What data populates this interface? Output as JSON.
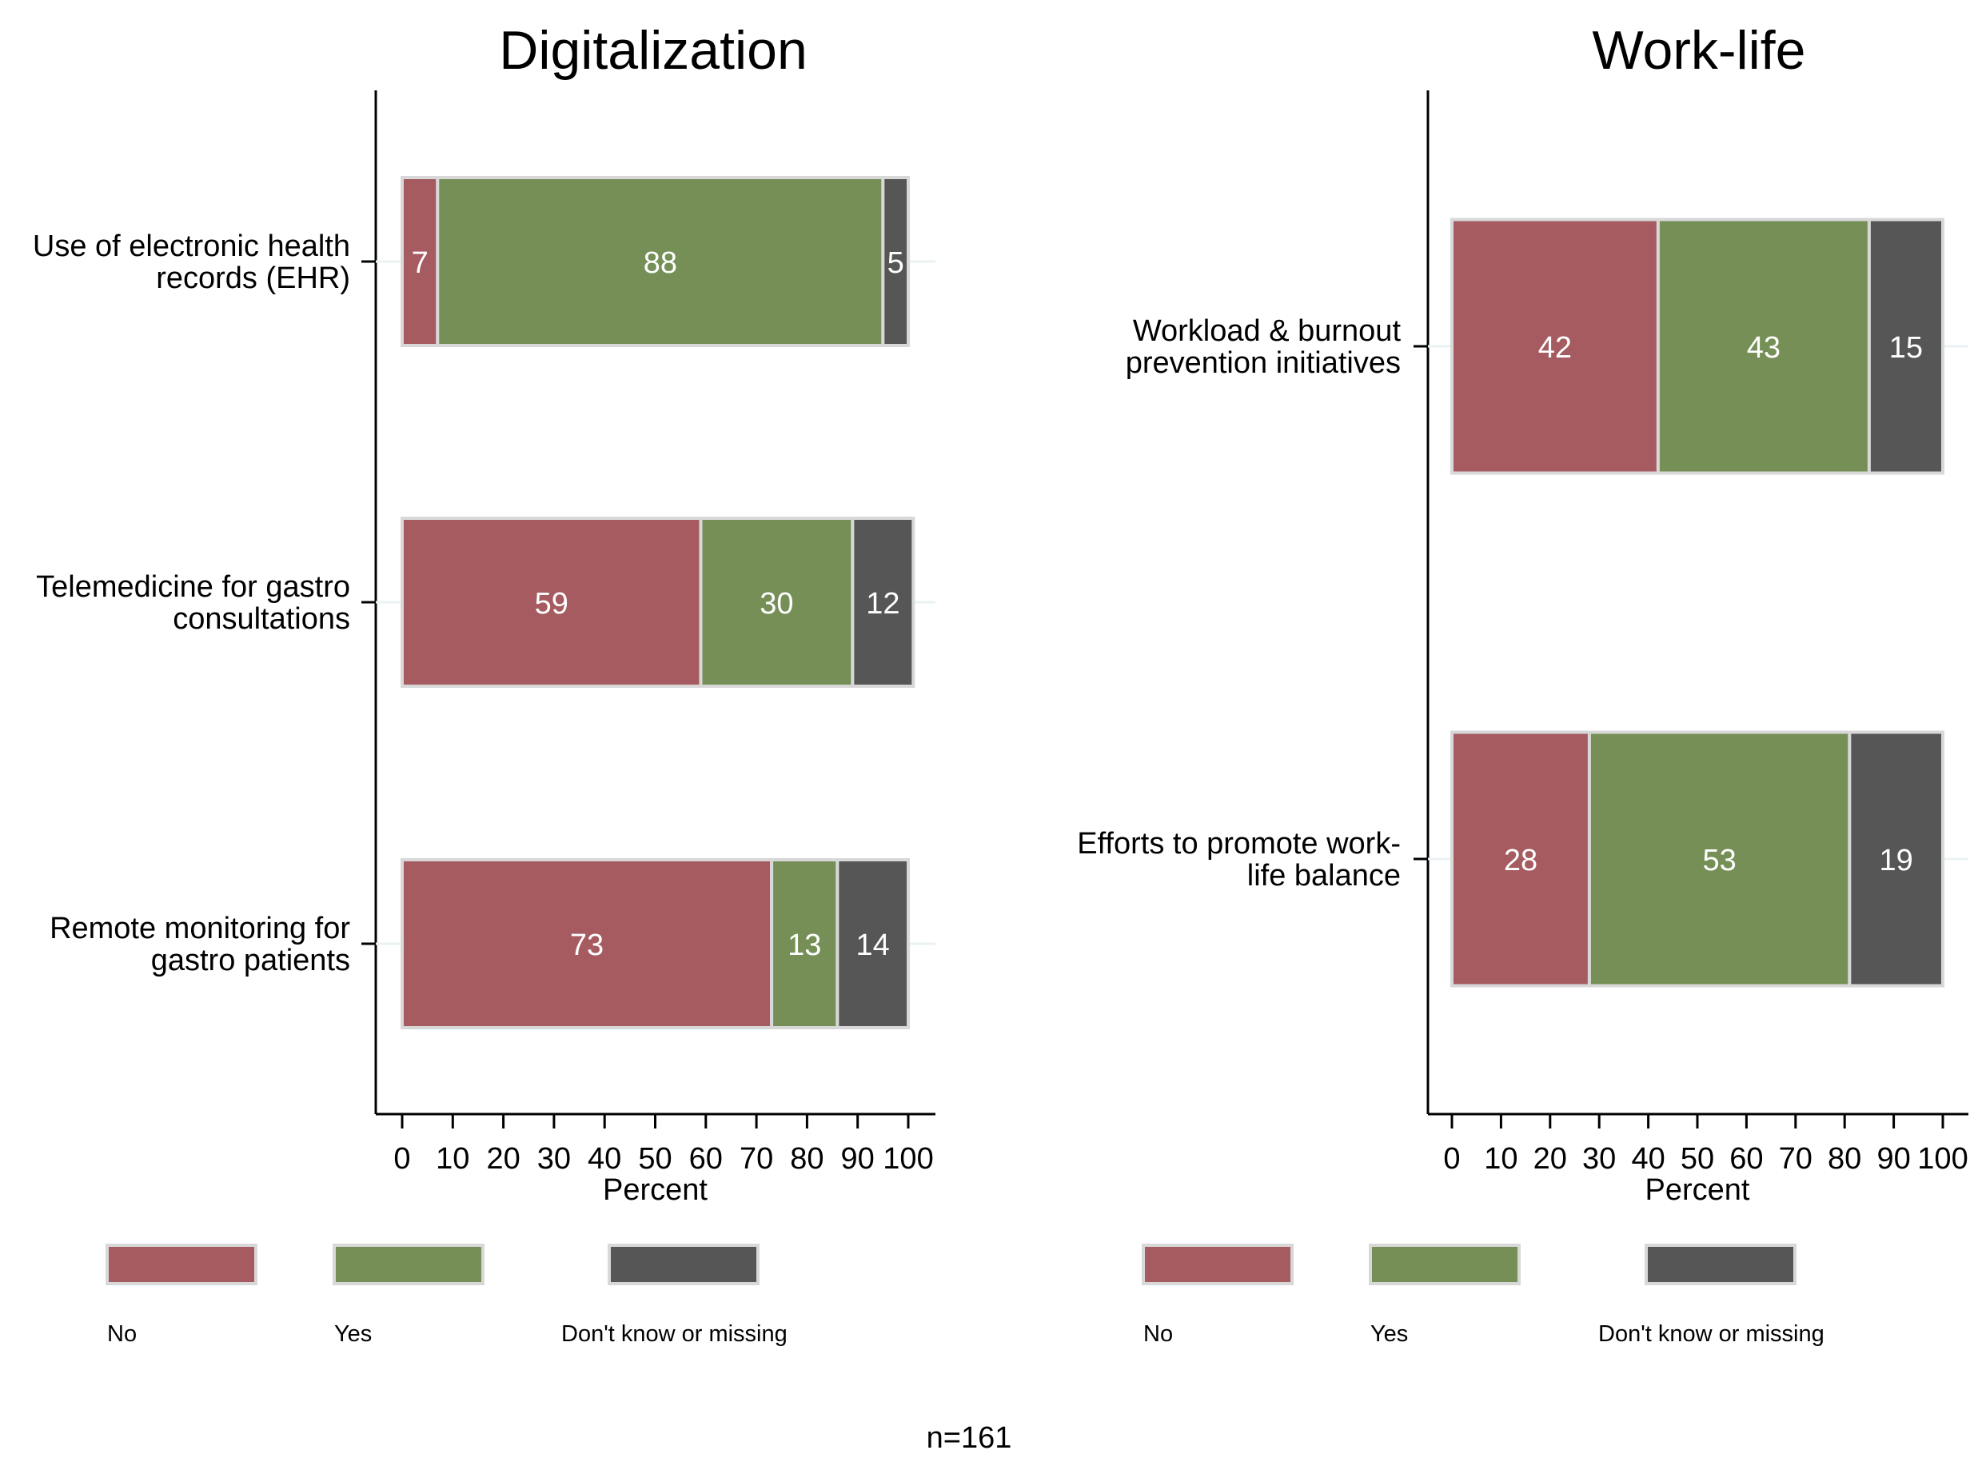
{
  "chart_data": [
    {
      "type": "bar",
      "orientation": "horizontal",
      "stacked": true,
      "title": "Digitalization",
      "xlabel": "Percent",
      "ylabel": "",
      "xlim": [
        0,
        100
      ],
      "xticks": [
        0,
        10,
        20,
        30,
        40,
        50,
        60,
        70,
        80,
        90,
        100
      ],
      "grid": false,
      "categories": [
        "Use of electronic health records (EHR)",
        "Telemedicine for gastro consultations",
        "Remote monitoring for gastro patients"
      ],
      "category_lines": [
        [
          "Use of electronic health",
          "records (EHR)"
        ],
        [
          "Telemedicine for gastro",
          "consultations"
        ],
        [
          "Remote monitoring for",
          "gastro patients"
        ]
      ],
      "series": [
        {
          "name": "No",
          "color": "#a55b60",
          "values": [
            7,
            59,
            73
          ]
        },
        {
          "name": "Yes",
          "color": "#758f56",
          "values": [
            88,
            30,
            13
          ]
        },
        {
          "name": "Don't know or missing",
          "color": "#565656",
          "values": [
            5,
            12,
            14
          ]
        }
      ],
      "legend": {
        "position": "bottom",
        "entries": [
          "No",
          "Yes",
          "Don't know or missing"
        ]
      }
    },
    {
      "type": "bar",
      "orientation": "horizontal",
      "stacked": true,
      "title": "Work-life",
      "xlabel": "Percent",
      "ylabel": "",
      "xlim": [
        0,
        100
      ],
      "xticks": [
        0,
        10,
        20,
        30,
        40,
        50,
        60,
        70,
        80,
        90,
        100
      ],
      "grid": false,
      "categories": [
        "Workload & burnout prevention initiatives",
        "Efforts to promote work-life balance"
      ],
      "category_lines": [
        [
          "Workload & burnout",
          "prevention initiatives"
        ],
        [
          "Efforts to promote work-",
          "life balance"
        ]
      ],
      "series": [
        {
          "name": "No",
          "color": "#a55b60",
          "values": [
            42,
            28
          ]
        },
        {
          "name": "Yes",
          "color": "#758f56",
          "values": [
            43,
            53
          ]
        },
        {
          "name": "Don't know or missing",
          "color": "#565656",
          "values": [
            15,
            19
          ]
        }
      ],
      "legend": {
        "position": "bottom",
        "entries": [
          "No",
          "Yes",
          "Don't know or missing"
        ]
      }
    }
  ],
  "footnote": "n=161"
}
